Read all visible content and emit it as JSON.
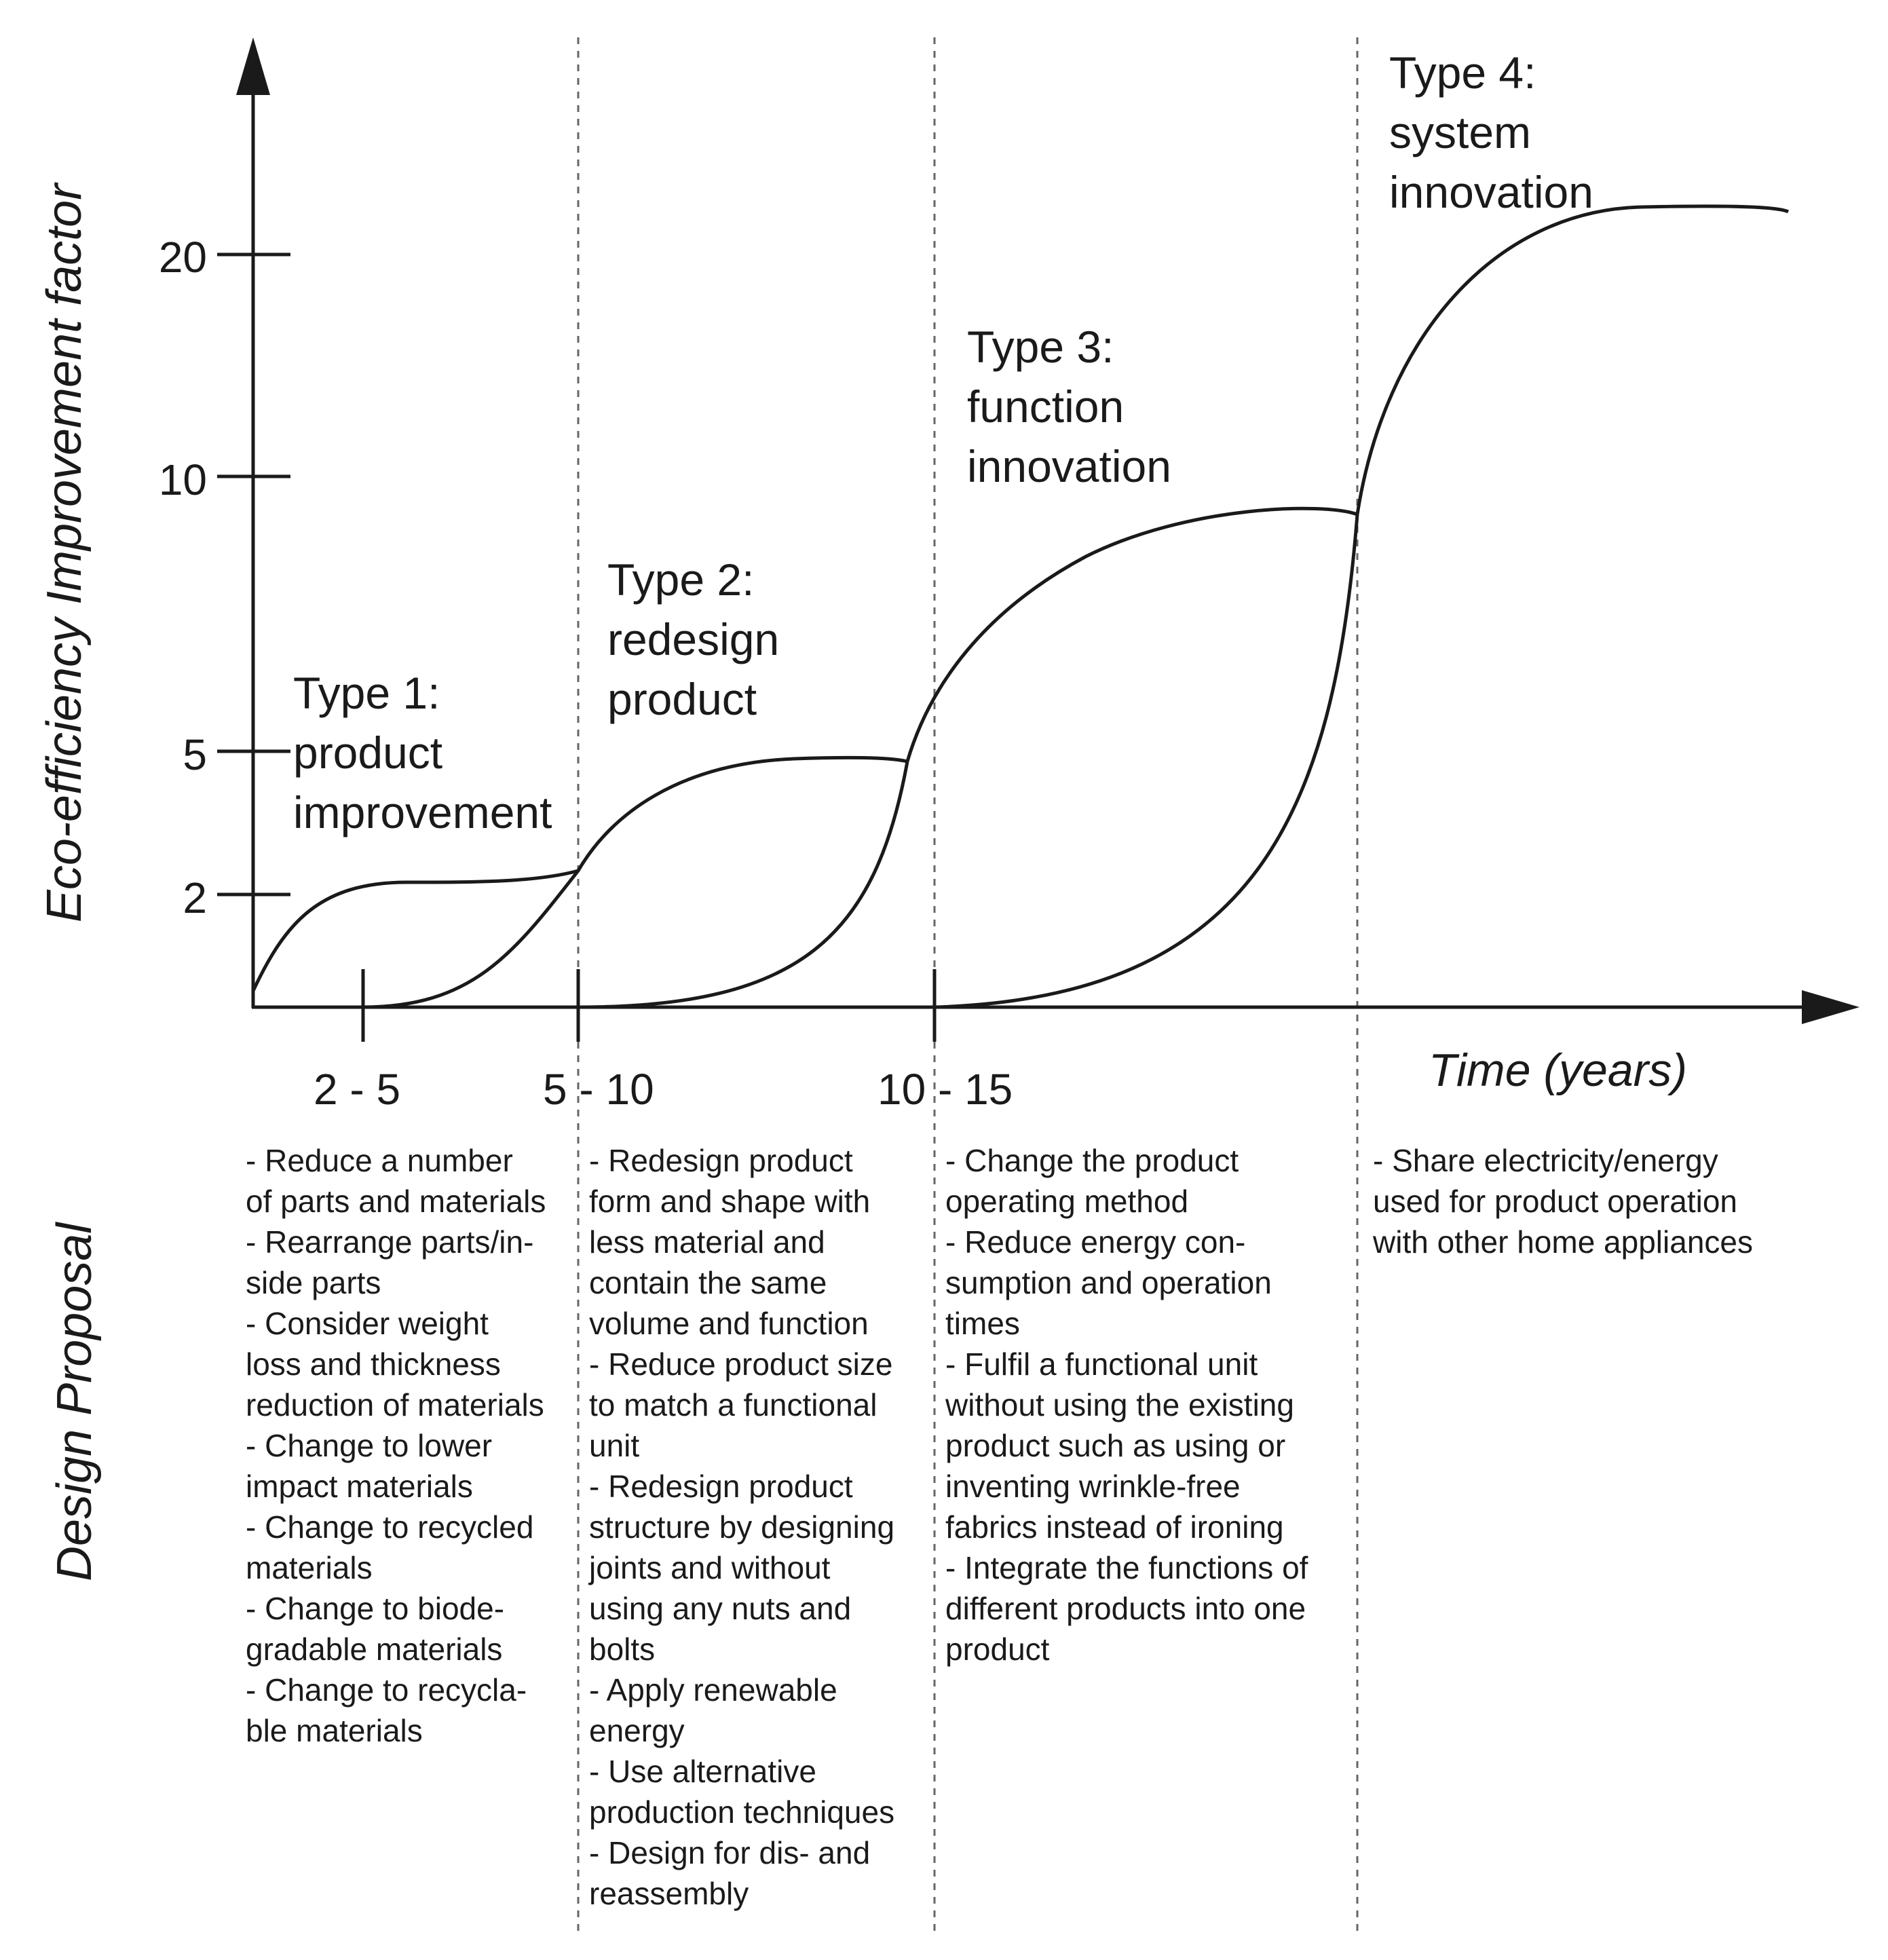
{
  "diagram": {
    "y_axis_title": "Eco-efficiency Improvement factor",
    "section_title": "Design Proposal",
    "x_axis_title": "Time (years)",
    "y_ticks": [
      "20",
      "10",
      "5",
      "2"
    ],
    "x_ticks": [
      "2 - 5",
      "5 - 10",
      "10 - 15"
    ],
    "types": [
      {
        "lines": [
          "Type 1:",
          "product",
          "improvement"
        ]
      },
      {
        "lines": [
          "Type 2:",
          "redesign",
          "product"
        ]
      },
      {
        "lines": [
          "Type 3:",
          "function",
          "innovation"
        ]
      },
      {
        "lines": [
          "Type 4:",
          "system",
          "innovation"
        ]
      }
    ],
    "proposals": [
      {
        "lines": [
          "- Reduce a number",
          "of parts and materials",
          "- Rearrange parts/in-",
          "side parts",
          "- Consider weight",
          "loss and thickness",
          "reduction of materials",
          "- Change to lower",
          "impact materials",
          "- Change to recycled",
          "materials",
          "- Change to biode-",
          "gradable materials",
          "- Change to recycla-",
          "ble materials"
        ]
      },
      {
        "lines": [
          "- Redesign product",
          "form and shape with",
          "less material and",
          "contain the same",
          "volume and function",
          "- Reduce product size",
          "to match a functional",
          "unit",
          "- Redesign product",
          "structure by designing",
          "joints and without",
          "using any nuts and",
          "bolts",
          "- Apply renewable",
          "energy",
          "- Use alternative",
          "production techniques",
          "- Design for dis- and",
          "reassembly"
        ]
      },
      {
        "lines": [
          "- Change the product",
          "operating method",
          "- Reduce energy con-",
          "sumption and operation",
          "times",
          "- Fulfil a functional unit",
          "without using the existing",
          "product such as using or",
          "inventing wrinkle-free",
          "fabrics instead of ironing",
          "- Integrate the functions of",
          "different products into one",
          "product"
        ]
      },
      {
        "lines": [
          "- Share electricity/energy",
          "used for product operation",
          "with other home appliances"
        ]
      }
    ]
  }
}
